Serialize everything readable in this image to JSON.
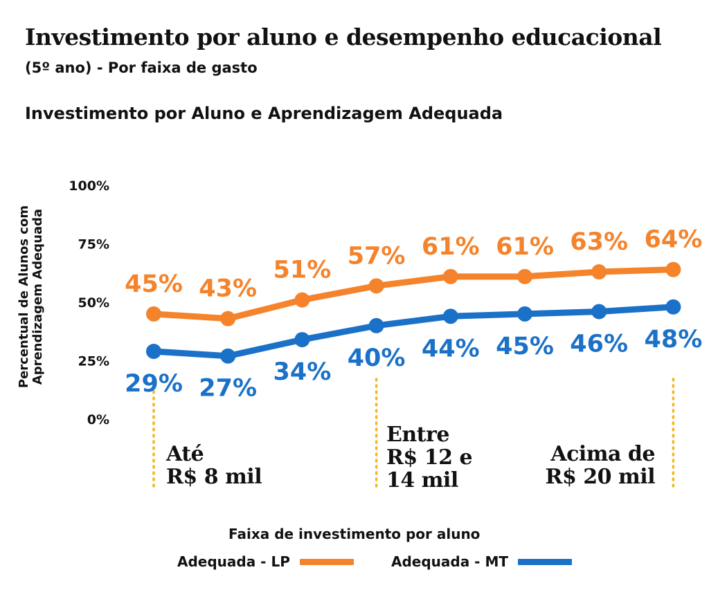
{
  "header": {
    "title": "Investimento por aluno e desempenho educacional",
    "subtitle": "(5º ano) - Por faixa de gasto"
  },
  "chart_data": {
    "type": "line",
    "title": "Investimento por Aluno e Aprendizagem Adequada",
    "xlabel": "Faixa de investimento por aluno",
    "ylabel_lines": [
      "Percentual de Alunos com",
      "Aprendizagem Adequada"
    ],
    "yticks": [
      "0%",
      "25%",
      "50%",
      "75%",
      "100%"
    ],
    "ylim": [
      0,
      100
    ],
    "grid": false,
    "legend_position": "bottom",
    "band_labels": [
      {
        "lines": [
          "Até",
          "R$ 8 mil"
        ],
        "point_index": 0
      },
      {
        "lines": [
          "Entre",
          "R$ 12 e",
          "14 mil"
        ],
        "point_index": 3
      },
      {
        "lines": [
          "Acima de",
          "R$ 20 mil"
        ],
        "point_index": 7
      }
    ],
    "series": [
      {
        "name": "Adequada - LP",
        "color": "#F5832B",
        "values": [
          45,
          43,
          51,
          57,
          61,
          61,
          63,
          64
        ],
        "labels": [
          "45%",
          "43%",
          "51%",
          "57%",
          "61%",
          "61%",
          "63%",
          "64%"
        ]
      },
      {
        "name": "Adequada - MT",
        "color": "#1B71C8",
        "values": [
          29,
          27,
          34,
          40,
          44,
          45,
          46,
          48
        ],
        "labels": [
          "29%",
          "27%",
          "34%",
          "40%",
          "44%",
          "45%",
          "46%",
          "48%"
        ]
      }
    ],
    "marker_color": "#F5B51B"
  }
}
